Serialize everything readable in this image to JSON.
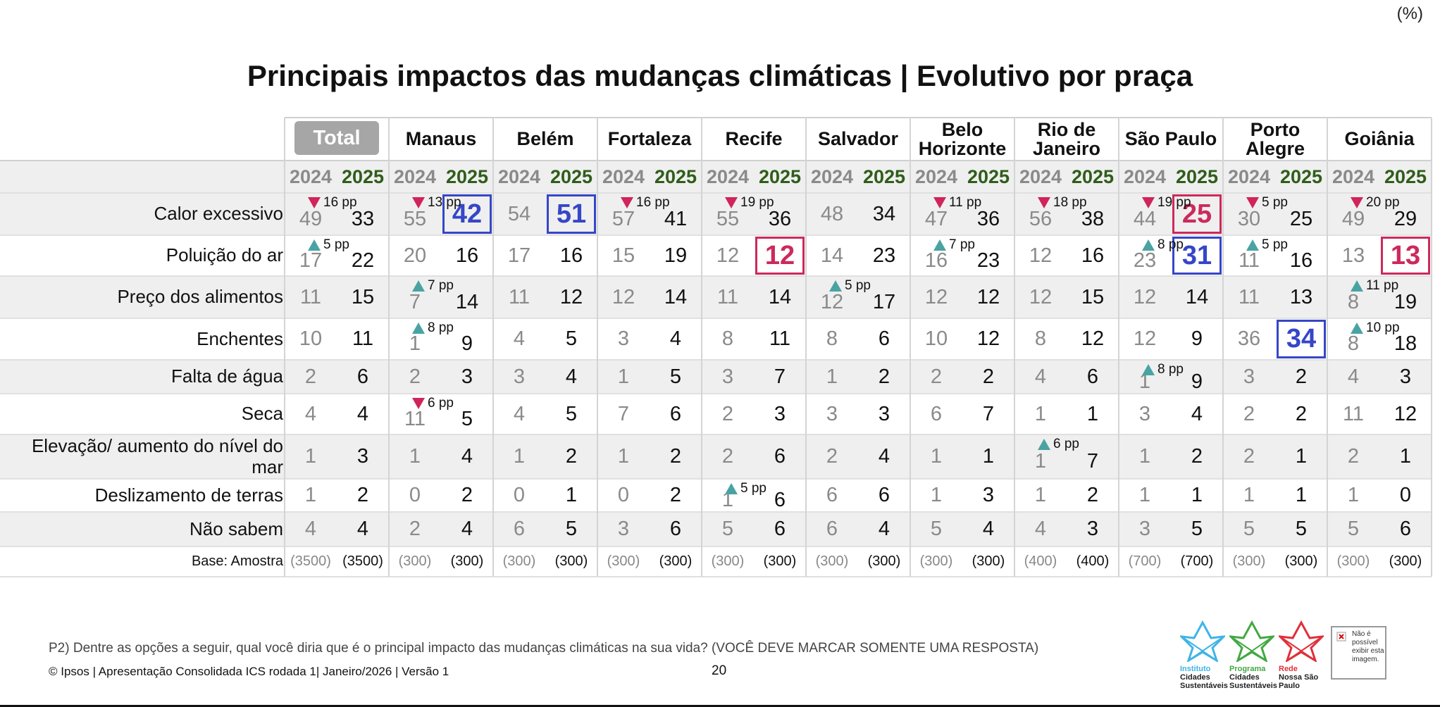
{
  "unit": "(%)",
  "title": "Principais impactos das mudanças climáticas | Evolutivo por praça",
  "table": {
    "columns": [
      "Total",
      "Manaus",
      "Belém",
      "Fortaleza",
      "Recife",
      "Salvador",
      "Belo Horizonte",
      "Rio de Janeiro",
      "São Paulo",
      "Porto Alegre",
      "Goiânia"
    ],
    "years": [
      "2024",
      "2025"
    ],
    "rows": [
      {
        "label": "Calor excessivo",
        "values": [
          [
            49,
            33
          ],
          [
            55,
            42
          ],
          [
            54,
            51
          ],
          [
            57,
            41
          ],
          [
            55,
            36
          ],
          [
            48,
            34
          ],
          [
            47,
            36
          ],
          [
            56,
            38
          ],
          [
            44,
            25
          ],
          [
            30,
            25
          ],
          [
            49,
            29
          ]
        ],
        "changes": [
          {
            "direction": "down",
            "label": "16 pp"
          },
          {
            "direction": "down",
            "label": "13 pp"
          },
          null,
          {
            "direction": "down",
            "label": "16 pp"
          },
          {
            "direction": "down",
            "label": "19 pp"
          },
          null,
          {
            "direction": "down",
            "label": "11 pp"
          },
          {
            "direction": "down",
            "label": "18 pp"
          },
          {
            "direction": "down",
            "label": "19 pp"
          },
          {
            "direction": "down",
            "label": "5 pp"
          },
          {
            "direction": "down",
            "label": "20 pp"
          }
        ],
        "boxes": [
          null,
          "#3646c8",
          "#3646c8",
          null,
          null,
          null,
          null,
          null,
          "#cc2a5c",
          null,
          null
        ]
      },
      {
        "label": "Poluição do ar",
        "values": [
          [
            17,
            22
          ],
          [
            20,
            16
          ],
          [
            17,
            16
          ],
          [
            15,
            19
          ],
          [
            12,
            12
          ],
          [
            14,
            23
          ],
          [
            16,
            23
          ],
          [
            12,
            16
          ],
          [
            23,
            31
          ],
          [
            11,
            16
          ],
          [
            13,
            13
          ]
        ],
        "changes": [
          {
            "direction": "up",
            "label": "5 pp"
          },
          null,
          null,
          null,
          null,
          null,
          {
            "direction": "up",
            "label": "7 pp"
          },
          null,
          {
            "direction": "up",
            "label": "8 pp"
          },
          {
            "direction": "up",
            "label": "5 pp"
          },
          null
        ],
        "boxes": [
          null,
          null,
          null,
          null,
          "#cc2a5c",
          null,
          null,
          null,
          "#3646c8",
          null,
          "#cc2a5c"
        ]
      },
      {
        "label": "Preço dos alimentos",
        "values": [
          [
            11,
            15
          ],
          [
            7,
            14
          ],
          [
            11,
            12
          ],
          [
            12,
            14
          ],
          [
            11,
            14
          ],
          [
            12,
            17
          ],
          [
            12,
            12
          ],
          [
            12,
            15
          ],
          [
            12,
            14
          ],
          [
            11,
            13
          ],
          [
            8,
            19
          ]
        ],
        "changes": [
          null,
          {
            "direction": "up",
            "label": "7 pp"
          },
          null,
          null,
          null,
          {
            "direction": "up",
            "label": "5 pp"
          },
          null,
          null,
          null,
          null,
          {
            "direction": "up",
            "label": "11 pp"
          }
        ],
        "boxes": [
          null,
          null,
          null,
          null,
          null,
          null,
          null,
          null,
          null,
          null,
          null
        ]
      },
      {
        "label": "Enchentes",
        "values": [
          [
            10,
            11
          ],
          [
            1,
            9
          ],
          [
            4,
            5
          ],
          [
            3,
            4
          ],
          [
            8,
            11
          ],
          [
            8,
            6
          ],
          [
            10,
            12
          ],
          [
            8,
            12
          ],
          [
            12,
            9
          ],
          [
            36,
            34
          ],
          [
            8,
            18
          ]
        ],
        "changes": [
          null,
          {
            "direction": "up",
            "label": "8 pp"
          },
          null,
          null,
          null,
          null,
          null,
          null,
          null,
          null,
          {
            "direction": "up",
            "label": "10 pp"
          }
        ],
        "boxes": [
          null,
          null,
          null,
          null,
          null,
          null,
          null,
          null,
          null,
          "#3646c8",
          null
        ]
      },
      {
        "label": "Falta de água",
        "values": [
          [
            2,
            6
          ],
          [
            2,
            3
          ],
          [
            3,
            4
          ],
          [
            1,
            5
          ],
          [
            3,
            7
          ],
          [
            1,
            2
          ],
          [
            2,
            2
          ],
          [
            4,
            6
          ],
          [
            1,
            9
          ],
          [
            3,
            2
          ],
          [
            4,
            3
          ]
        ],
        "changes": [
          null,
          null,
          null,
          null,
          null,
          null,
          null,
          null,
          {
            "direction": "up",
            "label": "8 pp"
          },
          null,
          null
        ],
        "boxes": [
          null,
          null,
          null,
          null,
          null,
          null,
          null,
          null,
          null,
          null,
          null
        ]
      },
      {
        "label": "Seca",
        "values": [
          [
            4,
            4
          ],
          [
            11,
            5
          ],
          [
            4,
            5
          ],
          [
            7,
            6
          ],
          [
            2,
            3
          ],
          [
            3,
            3
          ],
          [
            6,
            7
          ],
          [
            1,
            1
          ],
          [
            3,
            4
          ],
          [
            2,
            2
          ],
          [
            11,
            12
          ]
        ],
        "changes": [
          null,
          {
            "direction": "down",
            "label": "6 pp"
          },
          null,
          null,
          null,
          null,
          null,
          null,
          null,
          null,
          null
        ],
        "boxes": [
          null,
          null,
          null,
          null,
          null,
          null,
          null,
          null,
          null,
          null,
          null
        ]
      },
      {
        "label": "Elevação/ aumento do nível do mar",
        "values": [
          [
            1,
            3
          ],
          [
            1,
            4
          ],
          [
            1,
            2
          ],
          [
            1,
            2
          ],
          [
            2,
            6
          ],
          [
            2,
            4
          ],
          [
            1,
            1
          ],
          [
            1,
            7
          ],
          [
            1,
            2
          ],
          [
            2,
            1
          ],
          [
            2,
            1
          ]
        ],
        "changes": [
          null,
          null,
          null,
          null,
          null,
          null,
          null,
          {
            "direction": "up",
            "label": "6 pp"
          },
          null,
          null,
          null
        ],
        "boxes": [
          null,
          null,
          null,
          null,
          null,
          null,
          null,
          null,
          null,
          null,
          null
        ]
      },
      {
        "label": "Deslizamento de terras",
        "values": [
          [
            1,
            2
          ],
          [
            0,
            2
          ],
          [
            0,
            1
          ],
          [
            0,
            2
          ],
          [
            1,
            6
          ],
          [
            6,
            6
          ],
          [
            1,
            3
          ],
          [
            1,
            2
          ],
          [
            1,
            1
          ],
          [
            1,
            1
          ],
          [
            1,
            0
          ]
        ],
        "changes": [
          null,
          null,
          null,
          null,
          {
            "direction": "up",
            "label": "5 pp"
          },
          null,
          null,
          null,
          null,
          null,
          null
        ],
        "boxes": [
          null,
          null,
          null,
          null,
          null,
          null,
          null,
          null,
          null,
          null,
          null
        ]
      },
      {
        "label": "Não sabem",
        "values": [
          [
            4,
            4
          ],
          [
            2,
            4
          ],
          [
            6,
            5
          ],
          [
            3,
            6
          ],
          [
            5,
            6
          ],
          [
            6,
            4
          ],
          [
            5,
            4
          ],
          [
            4,
            3
          ],
          [
            3,
            5
          ],
          [
            5,
            5
          ],
          [
            5,
            6
          ]
        ],
        "changes": [
          null,
          null,
          null,
          null,
          null,
          null,
          null,
          null,
          null,
          null,
          null
        ],
        "boxes": [
          null,
          null,
          null,
          null,
          null,
          null,
          null,
          null,
          null,
          null,
          null
        ]
      },
      {
        "label": "Base: Amostra",
        "values": [
          [
            "(3500)",
            "(3500)"
          ],
          [
            "(300)",
            "(300)"
          ],
          [
            "(300)",
            "(300)"
          ],
          [
            "(300)",
            "(300)"
          ],
          [
            "(300)",
            "(300)"
          ],
          [
            "(300)",
            "(300)"
          ],
          [
            "(300)",
            "(300)"
          ],
          [
            "(400)",
            "(400)"
          ],
          [
            "(700)",
            "(700)"
          ],
          [
            "(300)",
            "(300)"
          ],
          [
            "(300)",
            "(300)"
          ]
        ],
        "changes": [
          null,
          null,
          null,
          null,
          null,
          null,
          null,
          null,
          null,
          null,
          null
        ],
        "boxes": [
          null,
          null,
          null,
          null,
          null,
          null,
          null,
          null,
          null,
          null,
          null
        ]
      }
    ]
  },
  "footer": {
    "question": "P2) Dentre as opções a seguir, qual você diria que é o principal impacto das mudanças climáticas na sua vida? (VOCÊ DEVE MARCAR SOMENTE UMA RESPOSTA)",
    "credit": "© Ipsos | Apresentação Consolidada ICS rodada 1| Janeiro/2026 | Versão 1",
    "page": "20"
  },
  "logos": [
    {
      "top": "Instituto",
      "bottom": "Cidades Sustentáveis",
      "color": "#3fb4e6"
    },
    {
      "top": "Programa",
      "bottom": "Cidades Sustentáveis",
      "color": "#43a843"
    },
    {
      "top": "Rede",
      "bottom": "Nossa São Paulo",
      "color": "#e0303a"
    }
  ],
  "broken_image": "Não é possível exibir esta imagem."
}
